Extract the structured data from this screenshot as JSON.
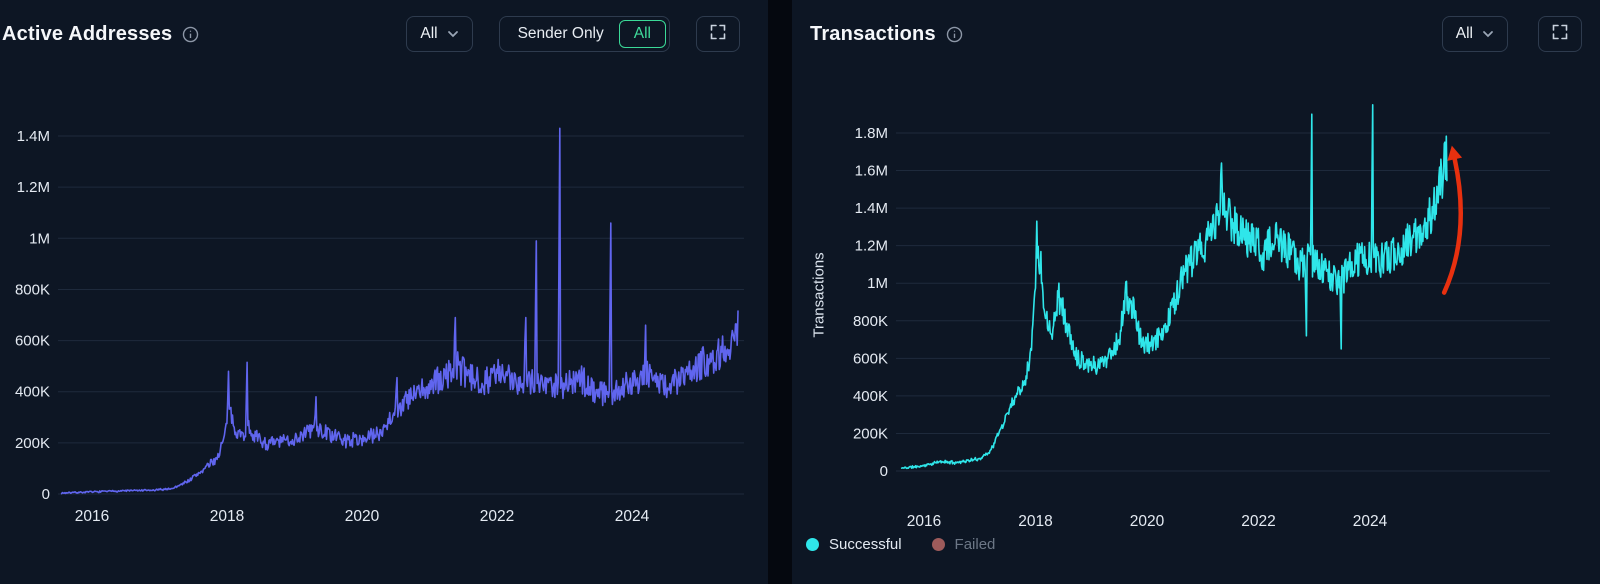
{
  "left_panel": {
    "title": "Active Addresses",
    "dropdown": {
      "label": "All"
    },
    "segmented": {
      "options": [
        "Sender Only",
        "All"
      ],
      "selected": "All",
      "accent": "#3bd998"
    },
    "line_color": "#6065ee"
  },
  "right_panel": {
    "title": "Transactions",
    "dropdown": {
      "label": "All"
    },
    "y_axis_title": "Transactions",
    "legend": [
      {
        "label": "Successful",
        "color": "#2fe6ea",
        "muted": false
      },
      {
        "label": "Failed",
        "color": "#9d5b5b",
        "muted": true
      }
    ]
  },
  "chart_data": [
    {
      "type": "line",
      "title": "Active Addresses",
      "x_range": [
        2015.55,
        2025.6
      ],
      "ylim": [
        0,
        1500000
      ],
      "grid": "horizontal",
      "legend_position": "none",
      "yticks": [
        {
          "v": 0,
          "label": "0"
        },
        {
          "v": 200000,
          "label": "200K"
        },
        {
          "v": 400000,
          "label": "400K"
        },
        {
          "v": 600000,
          "label": "600K"
        },
        {
          "v": 800000,
          "label": "800K"
        },
        {
          "v": 1000000,
          "label": "1M"
        },
        {
          "v": 1200000,
          "label": "1.2M"
        },
        {
          "v": 1400000,
          "label": "1.4M"
        }
      ],
      "xticks": [
        {
          "v": 2016,
          "label": "2016"
        },
        {
          "v": 2018,
          "label": "2018"
        },
        {
          "v": 2020,
          "label": "2020"
        },
        {
          "v": 2022,
          "label": "2022"
        },
        {
          "v": 2024,
          "label": "2024"
        }
      ],
      "series": [
        {
          "name": "Active Addresses",
          "color": "#6065ee",
          "visible": true,
          "noise": 0.13,
          "abs_noise": 2500,
          "seed": 7,
          "anchors": [
            [
              2015.55,
              4000
            ],
            [
              2016.1,
              9000
            ],
            [
              2016.5,
              13000
            ],
            [
              2016.9,
              14000
            ],
            [
              2017.2,
              22000
            ],
            [
              2017.45,
              55000
            ],
            [
              2017.65,
              95000
            ],
            [
              2017.85,
              140000
            ],
            [
              2017.95,
              210000
            ],
            [
              2018.05,
              320000
            ],
            [
              2018.12,
              260000
            ],
            [
              2018.22,
              225000
            ],
            [
              2018.32,
              265000
            ],
            [
              2018.45,
              215000
            ],
            [
              2018.6,
              195000
            ],
            [
              2018.8,
              205000
            ],
            [
              2019.0,
              215000
            ],
            [
              2019.3,
              260000
            ],
            [
              2019.5,
              235000
            ],
            [
              2019.75,
              210000
            ],
            [
              2020.0,
              215000
            ],
            [
              2020.25,
              235000
            ],
            [
              2020.5,
              330000
            ],
            [
              2020.75,
              380000
            ],
            [
              2021.0,
              420000
            ],
            [
              2021.2,
              450000
            ],
            [
              2021.4,
              500000
            ],
            [
              2021.6,
              450000
            ],
            [
              2021.8,
              445000
            ],
            [
              2022.0,
              470000
            ],
            [
              2022.2,
              445000
            ],
            [
              2022.45,
              455000
            ],
            [
              2022.7,
              430000
            ],
            [
              2023.0,
              430000
            ],
            [
              2023.25,
              445000
            ],
            [
              2023.5,
              400000
            ],
            [
              2023.75,
              395000
            ],
            [
              2024.0,
              445000
            ],
            [
              2024.25,
              465000
            ],
            [
              2024.5,
              420000
            ],
            [
              2024.75,
              450000
            ],
            [
              2025.0,
              505000
            ],
            [
              2025.2,
              535000
            ],
            [
              2025.4,
              575000
            ],
            [
              2025.58,
              640000
            ]
          ],
          "spikes": [
            [
              2018.02,
              480000
            ],
            [
              2018.3,
              515000
            ],
            [
              2019.32,
              380000
            ],
            [
              2020.52,
              455000
            ],
            [
              2021.38,
              690000
            ],
            [
              2022.42,
              690000
            ],
            [
              2022.58,
              990000
            ],
            [
              2022.93,
              1430000
            ],
            [
              2023.68,
              1060000
            ],
            [
              2024.2,
              660000
            ],
            [
              2025.55,
              665000
            ]
          ]
        }
      ]
    },
    {
      "type": "line",
      "title": "Transactions",
      "ylabel": "Transactions",
      "x_range": [
        2015.6,
        2025.4
      ],
      "ylim": [
        0,
        2000000
      ],
      "grid": "horizontal",
      "legend_position": "bottom-left",
      "yticks": [
        {
          "v": 0,
          "label": "0"
        },
        {
          "v": 200000,
          "label": "200K"
        },
        {
          "v": 400000,
          "label": "400K"
        },
        {
          "v": 600000,
          "label": "600K"
        },
        {
          "v": 800000,
          "label": "800K"
        },
        {
          "v": 1000000,
          "label": "1M"
        },
        {
          "v": 1200000,
          "label": "1.2M"
        },
        {
          "v": 1400000,
          "label": "1.4M"
        },
        {
          "v": 1600000,
          "label": "1.6M"
        },
        {
          "v": 1800000,
          "label": "1.8M"
        }
      ],
      "xticks": [
        {
          "v": 2016,
          "label": "2016"
        },
        {
          "v": 2018,
          "label": "2018"
        },
        {
          "v": 2020,
          "label": "2020"
        },
        {
          "v": 2022,
          "label": "2022"
        },
        {
          "v": 2024,
          "label": "2024"
        }
      ],
      "series": [
        {
          "name": "Successful",
          "color": "#2fe6ea",
          "visible": true,
          "noise": 0.085,
          "abs_noise": 6000,
          "seed": 11,
          "anchors": [
            [
              2015.6,
              15000
            ],
            [
              2016.0,
              28000
            ],
            [
              2016.3,
              50000
            ],
            [
              2016.55,
              45000
            ],
            [
              2016.8,
              55000
            ],
            [
              2017.0,
              65000
            ],
            [
              2017.2,
              110000
            ],
            [
              2017.4,
              240000
            ],
            [
              2017.6,
              380000
            ],
            [
              2017.8,
              480000
            ],
            [
              2017.92,
              620000
            ],
            [
              2018.0,
              1050000
            ],
            [
              2018.08,
              1150000
            ],
            [
              2018.18,
              820000
            ],
            [
              2018.3,
              760000
            ],
            [
              2018.42,
              930000
            ],
            [
              2018.55,
              790000
            ],
            [
              2018.7,
              620000
            ],
            [
              2018.9,
              580000
            ],
            [
              2019.1,
              560000
            ],
            [
              2019.3,
              610000
            ],
            [
              2019.5,
              700000
            ],
            [
              2019.62,
              930000
            ],
            [
              2019.75,
              860000
            ],
            [
              2019.9,
              690000
            ],
            [
              2020.1,
              660000
            ],
            [
              2020.35,
              780000
            ],
            [
              2020.6,
              1000000
            ],
            [
              2020.8,
              1120000
            ],
            [
              2021.0,
              1180000
            ],
            [
              2021.2,
              1300000
            ],
            [
              2021.35,
              1420000
            ],
            [
              2021.5,
              1340000
            ],
            [
              2021.7,
              1270000
            ],
            [
              2021.9,
              1230000
            ],
            [
              2022.1,
              1170000
            ],
            [
              2022.3,
              1230000
            ],
            [
              2022.5,
              1180000
            ],
            [
              2022.7,
              1110000
            ],
            [
              2022.9,
              1120000
            ],
            [
              2023.1,
              1100000
            ],
            [
              2023.3,
              1020000
            ],
            [
              2023.5,
              1030000
            ],
            [
              2023.7,
              1100000
            ],
            [
              2023.9,
              1140000
            ],
            [
              2024.1,
              1120000
            ],
            [
              2024.3,
              1130000
            ],
            [
              2024.5,
              1170000
            ],
            [
              2024.7,
              1220000
            ],
            [
              2024.9,
              1260000
            ],
            [
              2025.1,
              1380000
            ],
            [
              2025.25,
              1500000
            ],
            [
              2025.38,
              1680000
            ]
          ],
          "spikes": [
            [
              2018.02,
              1330000
            ],
            [
              2018.42,
              1000000
            ],
            [
              2019.63,
              1010000
            ],
            [
              2021.33,
              1640000
            ],
            [
              2022.86,
              720000
            ],
            [
              2022.95,
              1900000
            ],
            [
              2023.48,
              650000
            ],
            [
              2024.05,
              1950000
            ]
          ]
        },
        {
          "name": "Failed",
          "color": "#9d5b5b",
          "visible": false,
          "anchors": [],
          "spikes": []
        }
      ],
      "annotation": {
        "type": "arrow",
        "color": "#e8300f",
        "from": [
          2025.33,
          950000
        ],
        "to": [
          2025.52,
          1660000
        ]
      }
    }
  ]
}
